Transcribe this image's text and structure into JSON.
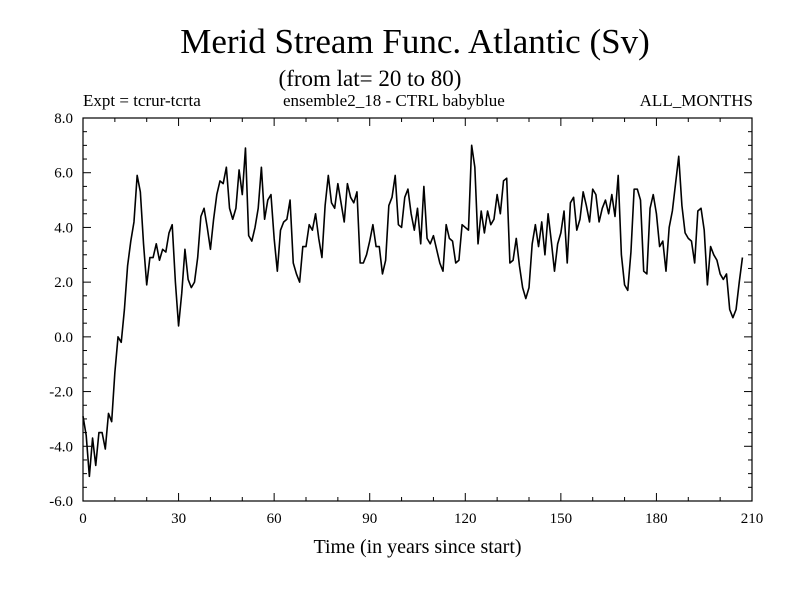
{
  "chart_data": {
    "type": "line",
    "title": "Merid Stream Func. Atlantic (Sv)",
    "subtitle": "(from lat= 20 to 80)",
    "header_left": "Expt = tcrur-tcrta",
    "header_center": "ensemble2_18 - CTRL babyblue",
    "header_right": "ALL_MONTHS",
    "xlabel": "Time (in years since start)",
    "ylabel": "",
    "xlim": [
      0,
      210
    ],
    "ylim": [
      -6,
      8
    ],
    "xticks": [
      0,
      30,
      60,
      90,
      120,
      150,
      180,
      210
    ],
    "yticks": [
      -6,
      -4,
      -2,
      0,
      2,
      4,
      6,
      8
    ],
    "xtick_labels": [
      "0",
      "30",
      "60",
      "90",
      "120",
      "150",
      "180",
      "210"
    ],
    "ytick_labels": [
      "-6.0",
      "-4.0",
      "-2.0",
      "0.0",
      "2.0",
      "4.0",
      "6.0",
      "8.0"
    ],
    "grid": false,
    "series": [
      {
        "x_start": 0,
        "x_step": 1,
        "values": [
          -2.9,
          -3.6,
          -5.1,
          -3.7,
          -4.7,
          -3.5,
          -3.5,
          -4.1,
          -2.8,
          -3.1,
          -1.3,
          0.0,
          -0.2,
          1.0,
          2.6,
          3.5,
          4.2,
          5.9,
          5.3,
          3.4,
          1.9,
          2.9,
          2.9,
          3.4,
          2.8,
          3.2,
          3.1,
          3.8,
          4.1,
          2.0,
          0.4,
          1.6,
          3.2,
          2.1,
          1.8,
          2.0,
          2.9,
          4.4,
          4.7,
          4.0,
          3.2,
          4.3,
          5.2,
          5.7,
          5.6,
          6.2,
          4.7,
          4.3,
          4.7,
          6.1,
          5.2,
          6.9,
          3.7,
          3.5,
          4.0,
          4.7,
          6.2,
          4.3,
          5.0,
          5.2,
          3.6,
          2.4,
          3.9,
          4.2,
          4.3,
          5.0,
          2.7,
          2.3,
          2.0,
          3.3,
          3.3,
          4.1,
          3.9,
          4.5,
          3.6,
          2.9,
          4.8,
          5.9,
          4.9,
          4.7,
          5.6,
          4.9,
          4.2,
          5.6,
          5.1,
          4.9,
          5.3,
          2.7,
          2.7,
          3.0,
          3.5,
          4.1,
          3.3,
          3.3,
          2.3,
          2.8,
          4.8,
          5.1,
          5.9,
          4.1,
          4.0,
          5.1,
          5.4,
          4.5,
          3.9,
          4.7,
          3.4,
          5.5,
          3.6,
          3.4,
          3.7,
          3.2,
          2.7,
          2.4,
          4.1,
          3.6,
          3.5,
          2.7,
          2.8,
          4.1,
          4.0,
          3.9,
          7.0,
          6.2,
          3.4,
          4.6,
          3.8,
          4.6,
          4.1,
          4.3,
          5.2,
          4.5,
          5.7,
          5.8,
          2.7,
          2.8,
          3.6,
          2.6,
          1.8,
          1.4,
          1.8,
          3.4,
          4.1,
          3.3,
          4.2,
          3.0,
          4.5,
          3.5,
          2.4,
          3.4,
          3.8,
          4.6,
          2.7,
          4.9,
          5.1,
          3.9,
          4.3,
          5.3,
          4.8,
          4.2,
          5.4,
          5.2,
          4.2,
          4.7,
          5.0,
          4.5,
          5.2,
          4.4,
          5.9,
          3.0,
          1.9,
          1.7,
          3.1,
          5.4,
          5.4,
          5.0,
          2.4,
          2.3,
          4.7,
          5.2,
          4.5,
          3.3,
          3.5,
          2.4,
          4.0,
          4.6,
          5.6,
          6.6,
          4.8,
          3.8,
          3.6,
          3.5,
          2.7,
          4.6,
          4.7,
          3.9,
          1.9,
          3.3,
          3.0,
          2.8,
          2.3,
          2.1,
          2.3,
          1.0,
          0.7,
          1.0,
          2.0,
          2.9
        ]
      }
    ]
  }
}
